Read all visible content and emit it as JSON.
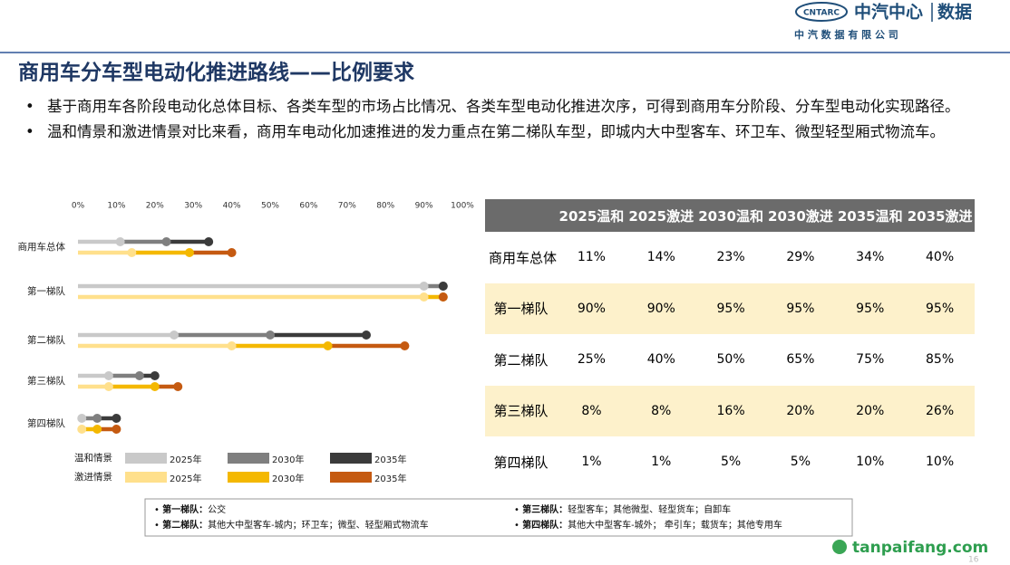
{
  "header": {
    "logo_mark": "CNTARC",
    "brand": "中汽中心",
    "brand_sub": "数据",
    "company": "中 汽 数 据 有 限 公 司"
  },
  "title": "商用车分车型电动化推进路线——比例要求",
  "bullets": [
    "基于商用车各阶段电动化总体目标、各类车型的市场占比情况、各类车型电动化推进次序，可得到商用车分阶段、分车型电动化实现路径。",
    "温和情景和激进情景对比来看，商用车电动化加速推进的发力重点在第二梯队车型，即城内大中型客车、环卫车、微型轻型厢式物流车。"
  ],
  "chart_data": {
    "type": "dumbbell",
    "categories": [
      "商用车总体",
      "第一梯队",
      "第二梯队",
      "第三梯队",
      "第四梯队"
    ],
    "xlim": [
      0,
      100
    ],
    "xticks": [
      {
        "value": 0,
        "label": "0%"
      },
      {
        "value": 10,
        "label": "10%"
      },
      {
        "value": 20,
        "label": "20%"
      },
      {
        "value": 30,
        "label": "30%"
      },
      {
        "value": 40,
        "label": "40%"
      },
      {
        "value": 50,
        "label": "50%"
      },
      {
        "value": 60,
        "label": "60%"
      },
      {
        "value": 70,
        "label": "70%"
      },
      {
        "value": 80,
        "label": "80%"
      },
      {
        "value": 90,
        "label": "90%"
      },
      {
        "value": 100,
        "label": "100%"
      }
    ],
    "scenarios": [
      {
        "name": "温和情景",
        "series": [
          {
            "name": "2025年",
            "color": "#c9c9c9",
            "values": [
              11,
              90,
              25,
              8,
              1
            ]
          },
          {
            "name": "2030年",
            "color": "#7f7f7f",
            "values": [
              23,
              95,
              50,
              16,
              5
            ]
          },
          {
            "name": "2035年",
            "color": "#3b3b3b",
            "values": [
              34,
              95,
              75,
              20,
              10
            ]
          }
        ]
      },
      {
        "name": "激进情景",
        "series": [
          {
            "name": "2025年",
            "color": "#ffe08c",
            "values": [
              14,
              90,
              40,
              8,
              1
            ]
          },
          {
            "name": "2030年",
            "color": "#f4b800",
            "values": [
              29,
              95,
              65,
              20,
              5
            ]
          },
          {
            "name": "2035年",
            "color": "#c55a11",
            "values": [
              40,
              95,
              85,
              26,
              10
            ]
          }
        ]
      }
    ]
  },
  "table": {
    "columns": [
      "2025温和",
      "2025激进",
      "2030温和",
      "2030激进",
      "2035温和",
      "2035激进"
    ],
    "rows": [
      {
        "label": "商用车总体",
        "cells": [
          "11%",
          "14%",
          "23%",
          "29%",
          "34%",
          "40%"
        ]
      },
      {
        "label": "第一梯队",
        "cells": [
          "90%",
          "90%",
          "95%",
          "95%",
          "95%",
          "95%"
        ]
      },
      {
        "label": "第二梯队",
        "cells": [
          "25%",
          "40%",
          "50%",
          "65%",
          "75%",
          "85%"
        ]
      },
      {
        "label": "第三梯队",
        "cells": [
          "8%",
          "8%",
          "16%",
          "20%",
          "20%",
          "26%"
        ]
      },
      {
        "label": "第四梯队",
        "cells": [
          "1%",
          "1%",
          "5%",
          "5%",
          "10%",
          "10%"
        ]
      }
    ]
  },
  "notes": [
    {
      "term": "第一梯队：",
      "text": "公交"
    },
    {
      "term": "第三梯队：",
      "text": "轻型客车；其他微型、轻型货车；自卸车"
    },
    {
      "term": "第二梯队：",
      "text": "其他大中型客车-城内；环卫车；微型、轻型厢式物流车"
    },
    {
      "term": "第四梯队：",
      "text": "其他大中型客车-城外； 牵引车；载货车；其他专用车"
    }
  ],
  "watermark": "tanpaifang.com",
  "page_number": "16"
}
